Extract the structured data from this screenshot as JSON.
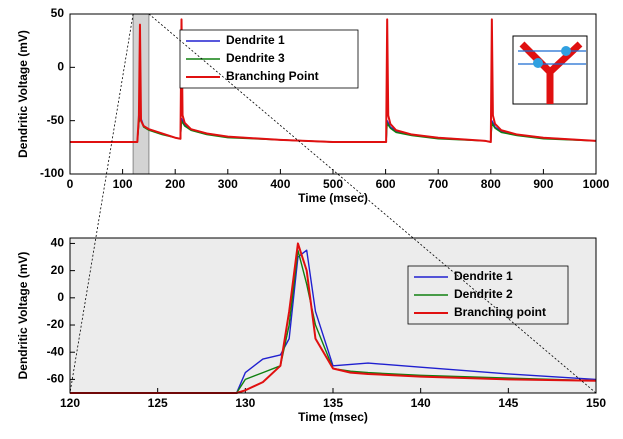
{
  "chart_data": [
    {
      "type": "line",
      "x_label": "Time (msec)",
      "y_label": "Dendritic Voltage (mV)",
      "xlim": [
        0,
        1000
      ],
      "xticks": [
        0,
        100,
        200,
        300,
        400,
        500,
        600,
        700,
        800,
        900,
        1000
      ],
      "ylim": [
        -100,
        50
      ],
      "yticks": [
        -100,
        -50,
        0,
        50
      ],
      "grid": false,
      "legend": "upper center",
      "x": [
        0,
        128,
        131,
        133,
        135,
        140,
        150,
        175,
        200,
        210,
        212,
        214,
        218,
        230,
        260,
        300,
        400,
        500,
        600,
        601,
        603,
        605,
        609,
        620,
        650,
        700,
        790,
        800,
        802,
        804,
        808,
        820,
        850,
        900,
        1000
      ],
      "series": [
        {
          "name": "Dendrite 1",
          "color": "#2020d0",
          "values": [
            -70,
            -70,
            -50,
            -45,
            -48,
            -55,
            -58,
            -62,
            -66,
            -67,
            -48,
            -50,
            -54,
            -58,
            -62,
            -65,
            -68,
            -70,
            -70,
            -70,
            -50,
            -52,
            -56,
            -60,
            -63,
            -66,
            -69,
            -70,
            -50,
            -52,
            -56,
            -60,
            -63,
            -66,
            -69
          ]
        },
        {
          "name": "Dendrite 3",
          "color": "#108010",
          "values": [
            -70,
            -70,
            -52,
            -48,
            -50,
            -56,
            -59,
            -63,
            -66,
            -67,
            -50,
            -52,
            -55,
            -59,
            -63,
            -66,
            -68,
            -70,
            -70,
            -70,
            -52,
            -54,
            -57,
            -61,
            -64,
            -67,
            -69,
            -70,
            -52,
            -54,
            -57,
            -61,
            -64,
            -67,
            -69
          ]
        },
        {
          "name": "Branching Point",
          "color": "#e01010",
          "values": [
            -70,
            -70,
            -45,
            40,
            -50,
            -55,
            -58,
            -62,
            -66,
            -67,
            45,
            -45,
            -52,
            -58,
            -62,
            -65,
            -68,
            -70,
            -70,
            -70,
            45,
            -45,
            -53,
            -59,
            -63,
            -66,
            -69,
            -70,
            45,
            -45,
            -53,
            -59,
            -63,
            -66,
            -69
          ]
        }
      ]
    },
    {
      "type": "line",
      "x_label": "Time (msec)",
      "y_label": "Dendritic Voltage (mV)",
      "xlim": [
        120,
        150
      ],
      "xticks": [
        120,
        125,
        130,
        135,
        140,
        145,
        150
      ],
      "ylim": [
        -70,
        44
      ],
      "yticks": [
        -60,
        -40,
        -20,
        0,
        20,
        40
      ],
      "grid": false,
      "legend": "center right",
      "x": [
        120,
        129.5,
        130,
        131,
        132,
        132.5,
        133,
        133.5,
        134,
        135,
        136,
        137,
        140,
        145,
        150
      ],
      "series": [
        {
          "name": "Dendrite 1",
          "color": "#2020d0",
          "values": [
            -70,
            -70,
            -55,
            -45,
            -42,
            -30,
            30,
            35,
            -10,
            -50,
            -49,
            -48,
            -51,
            -56,
            -60
          ]
        },
        {
          "name": "Dendrite 2",
          "color": "#108010",
          "values": [
            -70,
            -70,
            -60,
            -55,
            -50,
            -20,
            35,
            10,
            -20,
            -52,
            -54,
            -55,
            -57,
            -59,
            -61
          ]
        },
        {
          "name": "Branching point",
          "color": "#e01010",
          "values": [
            -70,
            -70,
            -68,
            -62,
            -50,
            -10,
            40,
            20,
            -30,
            -52,
            -55,
            -56,
            -58,
            -60,
            -61
          ]
        }
      ]
    }
  ]
}
